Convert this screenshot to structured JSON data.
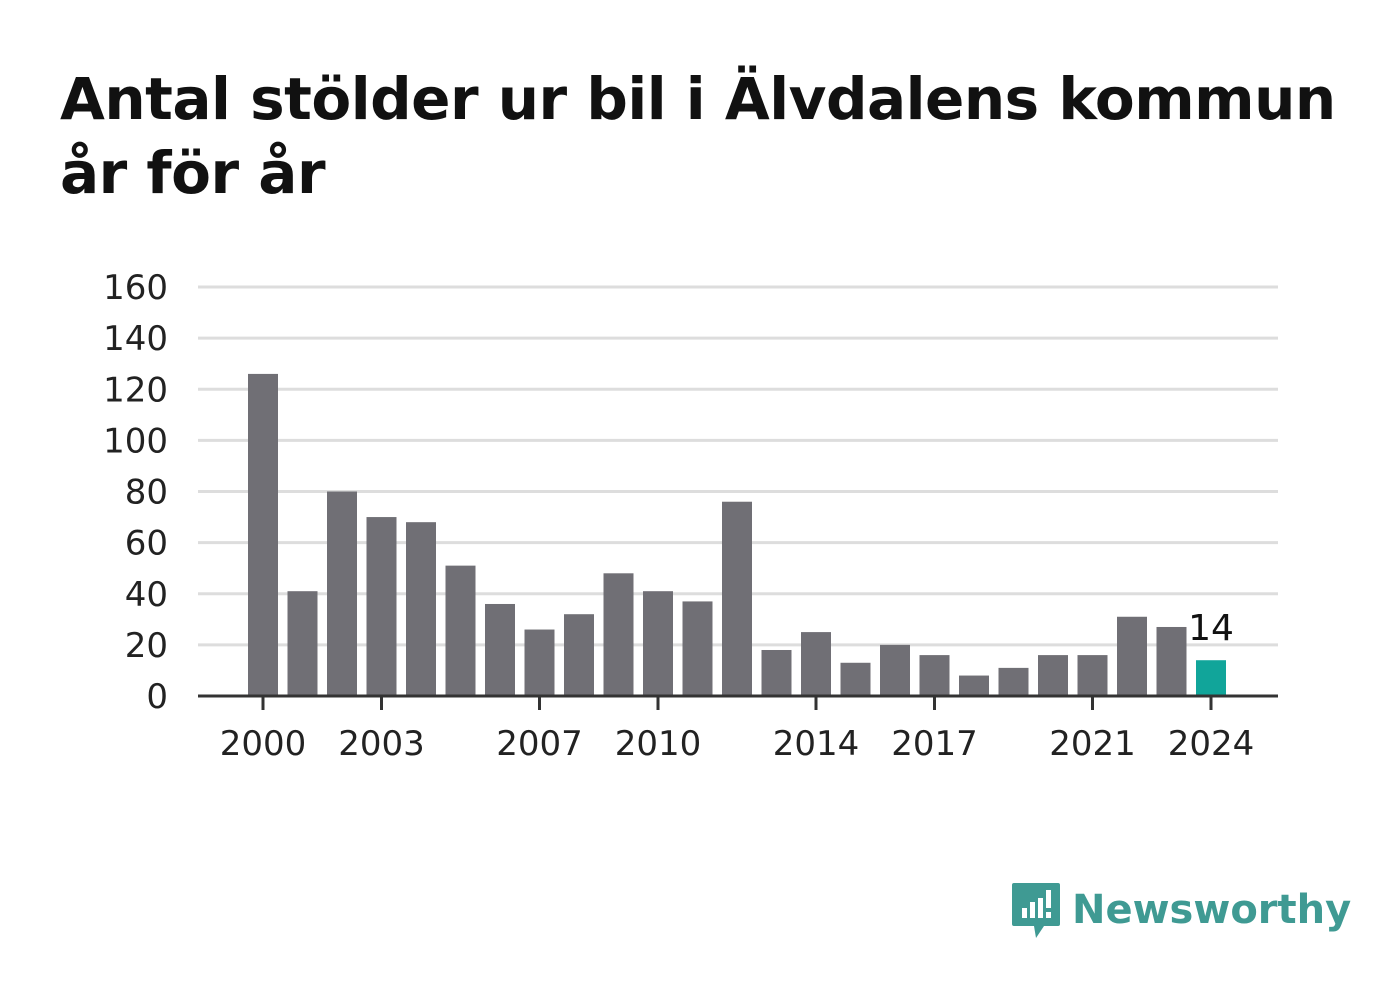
{
  "title": "Antal stölder ur bil i Älvdalens kommun år för år",
  "brand": {
    "name": "Newsworthy",
    "icon": "newsworthy-logo-icon"
  },
  "colors": {
    "bar": "#706f75",
    "highlight": "#11a59a",
    "grid": "#dddddd",
    "axis": "#333333",
    "brand": "#3f9a93"
  },
  "chart_data": {
    "type": "bar",
    "title": "Antal stölder ur bil i Älvdalens kommun år för år",
    "categories": [
      "2000",
      "2001",
      "2002",
      "2003",
      "2004",
      "2005",
      "2006",
      "2007",
      "2008",
      "2009",
      "2010",
      "2011",
      "2012",
      "2013",
      "2014",
      "2015",
      "2016",
      "2017",
      "2018",
      "2019",
      "2020",
      "2021",
      "2022",
      "2023",
      "2024"
    ],
    "values": [
      126,
      41,
      80,
      70,
      68,
      51,
      36,
      26,
      32,
      48,
      41,
      37,
      76,
      18,
      25,
      13,
      20,
      16,
      8,
      11,
      16,
      16,
      31,
      27,
      14
    ],
    "x_tick_labels": [
      "2000",
      "2003",
      "2007",
      "2010",
      "2014",
      "2017",
      "2021",
      "2024"
    ],
    "y_ticks": [
      0,
      20,
      40,
      60,
      80,
      100,
      120,
      140,
      160
    ],
    "ylim": [
      0,
      160
    ],
    "xlabel": "",
    "ylabel": "",
    "grid": true,
    "highlight": {
      "category": "2024",
      "label": "14"
    }
  }
}
